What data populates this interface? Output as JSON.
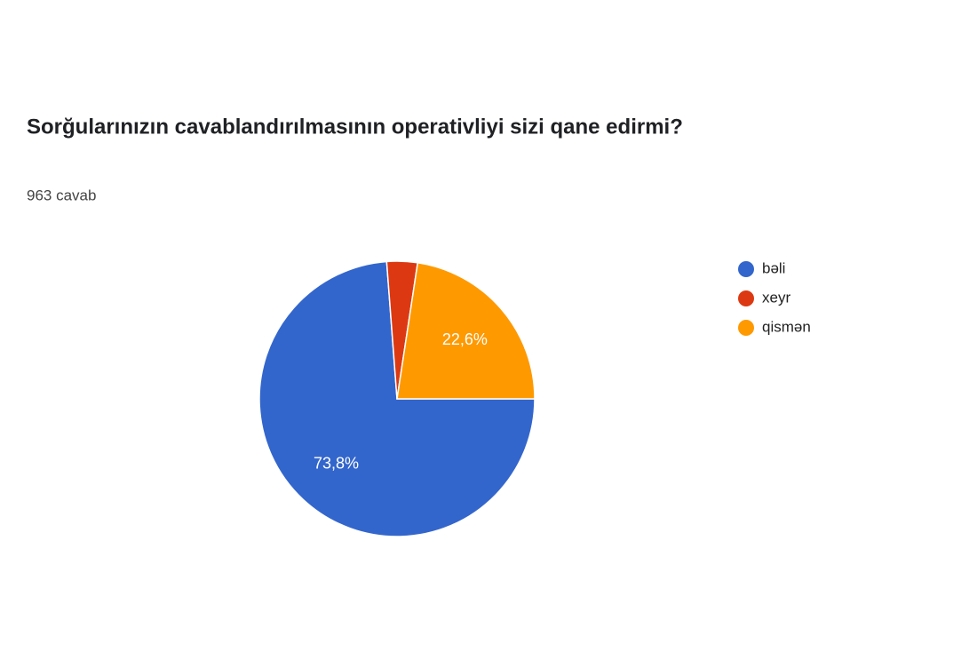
{
  "chart_data": {
    "type": "pie",
    "title": "Sorğularınızın cavablandırılmasının operativliyi sizi qane edirmi?",
    "subtitle": "963 cavab",
    "categories": [
      "bəli",
      "xeyr",
      "qismən"
    ],
    "values": [
      73.8,
      3.6,
      22.6
    ],
    "value_labels": [
      "73,8%",
      null,
      "22,6%"
    ],
    "colors": [
      "#3366cc",
      "#dc3912",
      "#ff9900"
    ],
    "legend": "right"
  }
}
